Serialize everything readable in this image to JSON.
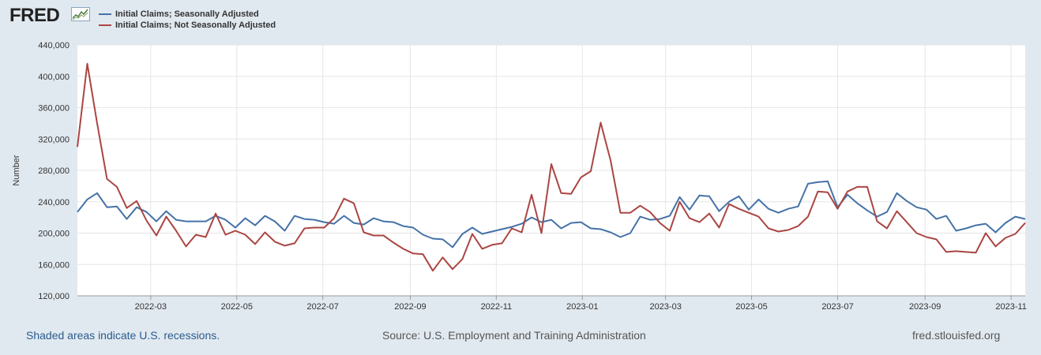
{
  "header": {
    "logo_text": "FRED",
    "logo_icon": "sparkline-chart-icon"
  },
  "legend": [
    {
      "label": "Initial Claims; Seasonally Adjusted",
      "color": "#4572a7"
    },
    {
      "label": "Initial Claims; Not Seasonally Adjusted",
      "color": "#aa4643"
    }
  ],
  "footer": {
    "recession_note": "Shaded areas indicate U.S. recessions.",
    "source": "Source: U.S. Employment and Training Administration",
    "site": "fred.stlouisfed.org"
  },
  "chart_data": {
    "type": "line",
    "ylabel": "Number",
    "xlabel": "",
    "ylim": [
      120000,
      440000
    ],
    "yticks": [
      120000,
      160000,
      200000,
      240000,
      280000,
      320000,
      360000,
      400000,
      440000
    ],
    "ytick_labels": [
      "120,000",
      "160,000",
      "200,000",
      "240,000",
      "280,000",
      "320,000",
      "360,000",
      "400,000",
      "440,000"
    ],
    "x_start": "2022-01-08",
    "x_interval_days": 7,
    "xlim": [
      "2022-01-08",
      "2023-11-11"
    ],
    "xticks": [
      "2022-03-01",
      "2022-05-01",
      "2022-07-01",
      "2022-09-01",
      "2022-11-01",
      "2023-01-01",
      "2023-03-01",
      "2023-05-01",
      "2023-07-01",
      "2023-09-01",
      "2023-11-01"
    ],
    "xtick_labels": [
      "2022-03",
      "2022-05",
      "2022-07",
      "2022-09",
      "2022-11",
      "2023-01",
      "2023-03",
      "2023-05",
      "2023-07",
      "2023-09",
      "2023-11"
    ],
    "grid": true,
    "series": [
      {
        "name": "Initial Claims; Seasonally Adjusted",
        "color": "#4572a7",
        "values": [
          227000,
          243000,
          251000,
          233000,
          234000,
          218000,
          233000,
          227000,
          215000,
          228000,
          217000,
          215000,
          215000,
          215000,
          222000,
          217000,
          207000,
          219000,
          210000,
          222000,
          215000,
          203000,
          222000,
          218000,
          217000,
          214000,
          212000,
          222000,
          213000,
          211000,
          219000,
          215000,
          214000,
          209000,
          207000,
          198000,
          193000,
          192000,
          182000,
          199000,
          207000,
          199000,
          202000,
          205000,
          208000,
          212000,
          220000,
          214000,
          217000,
          206000,
          213000,
          214000,
          206000,
          205000,
          201000,
          195000,
          200000,
          221000,
          217000,
          218000,
          222000,
          246000,
          230000,
          248000,
          247000,
          228000,
          240000,
          247000,
          230000,
          243000,
          231000,
          226000,
          231000,
          234000,
          263000,
          265000,
          266000,
          233000,
          249000,
          238000,
          229000,
          221000,
          227000,
          251000,
          241000,
          233000,
          230000,
          218000,
          222000,
          203000,
          206000,
          210000,
          212000,
          201000,
          213000,
          221000,
          218000
        ]
      },
      {
        "name": "Initial Claims; Not Seasonally Adjusted",
        "color": "#aa4643",
        "values": [
          310000,
          416000,
          340000,
          269000,
          259000,
          232000,
          241000,
          216000,
          197000,
          221000,
          203000,
          183000,
          198000,
          195000,
          225000,
          198000,
          203000,
          198000,
          186000,
          201000,
          189000,
          184000,
          187000,
          206000,
          207000,
          207000,
          219000,
          244000,
          238000,
          201000,
          197000,
          197000,
          188000,
          180000,
          174000,
          173000,
          152000,
          169000,
          154000,
          167000,
          199000,
          180000,
          185000,
          187000,
          206000,
          201000,
          249000,
          200000,
          288000,
          251000,
          250000,
          271000,
          279000,
          341000,
          293000,
          226000,
          226000,
          235000,
          227000,
          213000,
          203000,
          240000,
          219000,
          214000,
          225000,
          207000,
          237000,
          231000,
          226000,
          221000,
          206000,
          202000,
          204000,
          209000,
          221000,
          253000,
          252000,
          231000,
          253000,
          259000,
          259000,
          215000,
          206000,
          228000,
          214000,
          200000,
          195000,
          192000,
          176000,
          177000,
          176000,
          175000,
          200000,
          183000,
          194000,
          199000,
          213000
        ]
      }
    ]
  }
}
